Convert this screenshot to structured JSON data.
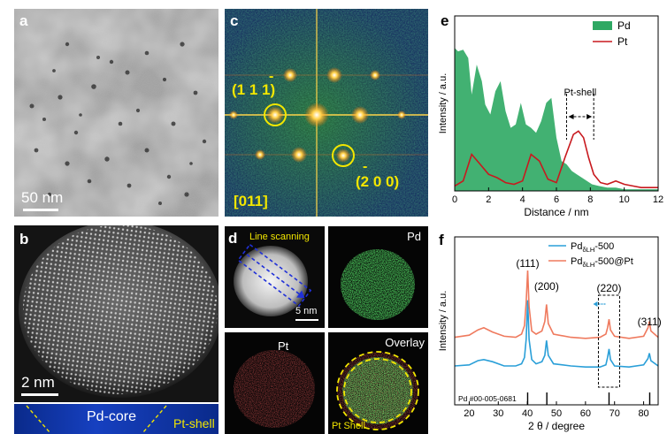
{
  "panels": {
    "a": {
      "label": "a",
      "scale_bar": "50 nm"
    },
    "b": {
      "label": "b",
      "scale_bar": "2 nm",
      "core_label": "Pd-core",
      "shell_label": "Pt-shell"
    },
    "c": {
      "label": "c",
      "spot_1": "(1 1 1)",
      "spot_1_bar": "-",
      "spot_2": "(2 0 0)",
      "spot_2_bar": "-",
      "zone_axis": "[011]"
    },
    "d": {
      "label": "d",
      "line_scanning": "Line scanning",
      "scale_bar": "5 nm",
      "map_pd": "Pd",
      "map_pt": "Pt",
      "map_overlay": "Overlay",
      "overlay_shell": "Pt Shell"
    },
    "e": {
      "label": "e",
      "annotation": "Pt-shell"
    },
    "f": {
      "label": "f",
      "reference": "Pd #00-005-0681"
    }
  },
  "colors": {
    "pd_green": "#2ea863",
    "pt_red": "#c8191e",
    "yellow": "#f2e600",
    "xrd_blue": "#2a9fd8",
    "xrd_orange": "#ef7a5e"
  },
  "chart_data": [
    {
      "type": "area",
      "panel": "e",
      "xlabel": "Distance / nm",
      "ylabel": "Intensity / a.u.",
      "xlim": [
        0,
        12
      ],
      "xticks": [
        0,
        2,
        4,
        6,
        8,
        10,
        12
      ],
      "legend_position": "top-right",
      "series": [
        {
          "name": "Pd",
          "style": "filled-area",
          "color": "#2ea863",
          "x": [
            0,
            0.2,
            0.5,
            0.8,
            1.0,
            1.3,
            1.6,
            1.8,
            2.1,
            2.4,
            2.7,
            3.0,
            3.3,
            3.6,
            3.9,
            4.2,
            4.5,
            4.8,
            5.1,
            5.4,
            5.7,
            6.0,
            6.3,
            6.6,
            6.9,
            7.2,
            7.5,
            7.8,
            8.1,
            8.5,
            9.0,
            9.5,
            10.0,
            10.5,
            11.0,
            11.5,
            12.0
          ],
          "y": [
            0.86,
            0.84,
            0.85,
            0.8,
            0.58,
            0.76,
            0.66,
            0.52,
            0.46,
            0.6,
            0.66,
            0.48,
            0.38,
            0.4,
            0.53,
            0.4,
            0.38,
            0.35,
            0.42,
            0.53,
            0.56,
            0.32,
            0.18,
            0.16,
            0.12,
            0.1,
            0.08,
            0.06,
            0.04,
            0.03,
            0.02,
            0.02,
            0.01,
            0.01,
            0.01,
            0.01,
            0.01
          ]
        },
        {
          "name": "Pt",
          "style": "line",
          "color": "#c8191e",
          "x": [
            0,
            0.5,
            1.0,
            1.5,
            2.0,
            2.5,
            3.0,
            3.5,
            4.0,
            4.5,
            5.0,
            5.5,
            6.0,
            6.5,
            7.0,
            7.3,
            7.6,
            7.9,
            8.2,
            8.6,
            9.0,
            9.5,
            10.0,
            10.5,
            11.0,
            11.5,
            12.0
          ],
          "y": [
            0.03,
            0.06,
            0.22,
            0.16,
            0.1,
            0.08,
            0.05,
            0.04,
            0.06,
            0.22,
            0.18,
            0.07,
            0.05,
            0.2,
            0.34,
            0.36,
            0.32,
            0.2,
            0.1,
            0.05,
            0.04,
            0.06,
            0.04,
            0.03,
            0.02,
            0.02,
            0.02
          ]
        }
      ]
    },
    {
      "type": "line",
      "panel": "f",
      "xlabel": "2 θ / degree",
      "ylabel": "Intensity / a.u.",
      "xlim": [
        15,
        85
      ],
      "xticks": [
        20,
        30,
        40,
        50,
        60,
        70,
        80
      ],
      "legend_position": "top-right",
      "peak_labels": [
        {
          "text": "(111)",
          "x": 40.1
        },
        {
          "text": "(200)",
          "x": 46.6
        },
        {
          "text": "(220)",
          "x": 68.1
        },
        {
          "text": "(311)",
          "x": 82.0
        }
      ],
      "reference_lines_x": [
        40.1,
        46.7,
        68.1,
        82.1
      ],
      "series": [
        {
          "name": "Pd",
          "name_subscript": "δLH",
          "name_suffix": "-500",
          "color": "#2a9fd8",
          "x": [
            15,
            20,
            23,
            25,
            28,
            32,
            36,
            38,
            39,
            39.6,
            40.1,
            40.6,
            41.5,
            43,
            45,
            46,
            46.6,
            47.2,
            49,
            55,
            60,
            65,
            67,
            67.6,
            68.1,
            68.6,
            70,
            75,
            80,
            81.5,
            82,
            82.5,
            85
          ],
          "y": [
            0.1,
            0.11,
            0.15,
            0.16,
            0.14,
            0.1,
            0.1,
            0.12,
            0.18,
            0.35,
            0.72,
            0.35,
            0.16,
            0.12,
            0.14,
            0.2,
            0.34,
            0.2,
            0.12,
            0.1,
            0.09,
            0.09,
            0.11,
            0.18,
            0.26,
            0.16,
            0.1,
            0.09,
            0.11,
            0.17,
            0.22,
            0.15,
            0.1
          ]
        },
        {
          "name": "Pd",
          "name_subscript": "δLH",
          "name_suffix": "-500@Pt",
          "color": "#ef7a5e",
          "x": [
            15,
            20,
            23,
            25,
            28,
            32,
            36,
            38,
            39,
            39.6,
            40.1,
            40.6,
            41.5,
            43,
            45,
            46,
            46.6,
            47.2,
            49,
            55,
            60,
            65,
            67,
            67.6,
            68.1,
            68.6,
            70,
            75,
            80,
            81.5,
            82,
            82.5,
            85
          ],
          "y": [
            0.37,
            0.39,
            0.44,
            0.46,
            0.42,
            0.38,
            0.37,
            0.4,
            0.48,
            0.7,
            1.0,
            0.66,
            0.43,
            0.4,
            0.43,
            0.52,
            0.68,
            0.5,
            0.4,
            0.37,
            0.36,
            0.37,
            0.4,
            0.46,
            0.54,
            0.44,
            0.38,
            0.36,
            0.38,
            0.46,
            0.52,
            0.43,
            0.37
          ]
        }
      ]
    }
  ]
}
